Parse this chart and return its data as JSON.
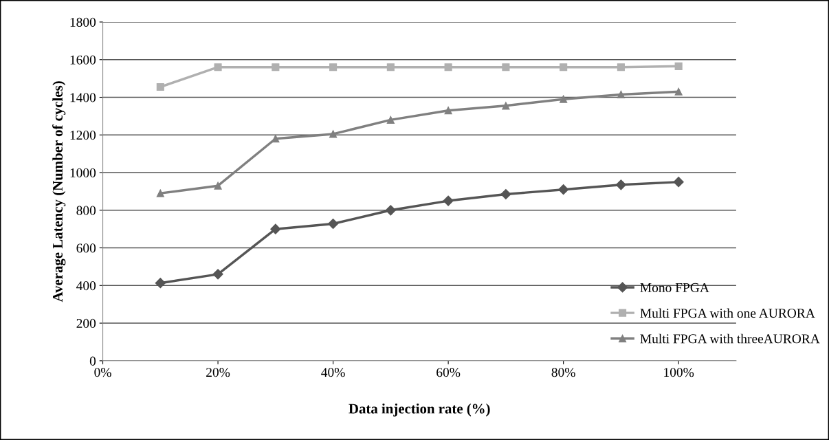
{
  "chart_data": {
    "type": "line",
    "xlabel": "Data injection rate (%)",
    "ylabel": "Average Latency (Number of cycles)",
    "x": [
      10,
      20,
      30,
      40,
      50,
      60,
      70,
      80,
      90,
      100
    ],
    "series": [
      {
        "name": "Mono FPGA",
        "color": "#555555",
        "marker": "diamond",
        "values": [
          413,
          460,
          700,
          728,
          800,
          850,
          885,
          910,
          935,
          950
        ]
      },
      {
        "name": "Multi FPGA with one AURORA",
        "color": "#b0b0b0",
        "marker": "square",
        "values": [
          1455,
          1560,
          1560,
          1560,
          1560,
          1560,
          1560,
          1560,
          1560,
          1565
        ]
      },
      {
        "name": "Multi FPGA with threeAURORA",
        "color": "#808080",
        "marker": "triangle",
        "values": [
          890,
          930,
          1180,
          1205,
          1280,
          1330,
          1355,
          1390,
          1415,
          1430
        ]
      }
    ],
    "xlim": [
      0,
      110
    ],
    "xticks": [
      {
        "value": 0,
        "label": "0%"
      },
      {
        "value": 20,
        "label": "20%"
      },
      {
        "value": 40,
        "label": "40%"
      },
      {
        "value": 60,
        "label": "60%"
      },
      {
        "value": 80,
        "label": "80%"
      },
      {
        "value": 100,
        "label": "100%"
      }
    ],
    "ylim": [
      0,
      1800
    ],
    "yticks": [
      0,
      200,
      400,
      600,
      800,
      1000,
      1200,
      1400,
      1600,
      1800
    ],
    "grid": "y",
    "legend": "bottom right",
    "line_style": "solid"
  }
}
